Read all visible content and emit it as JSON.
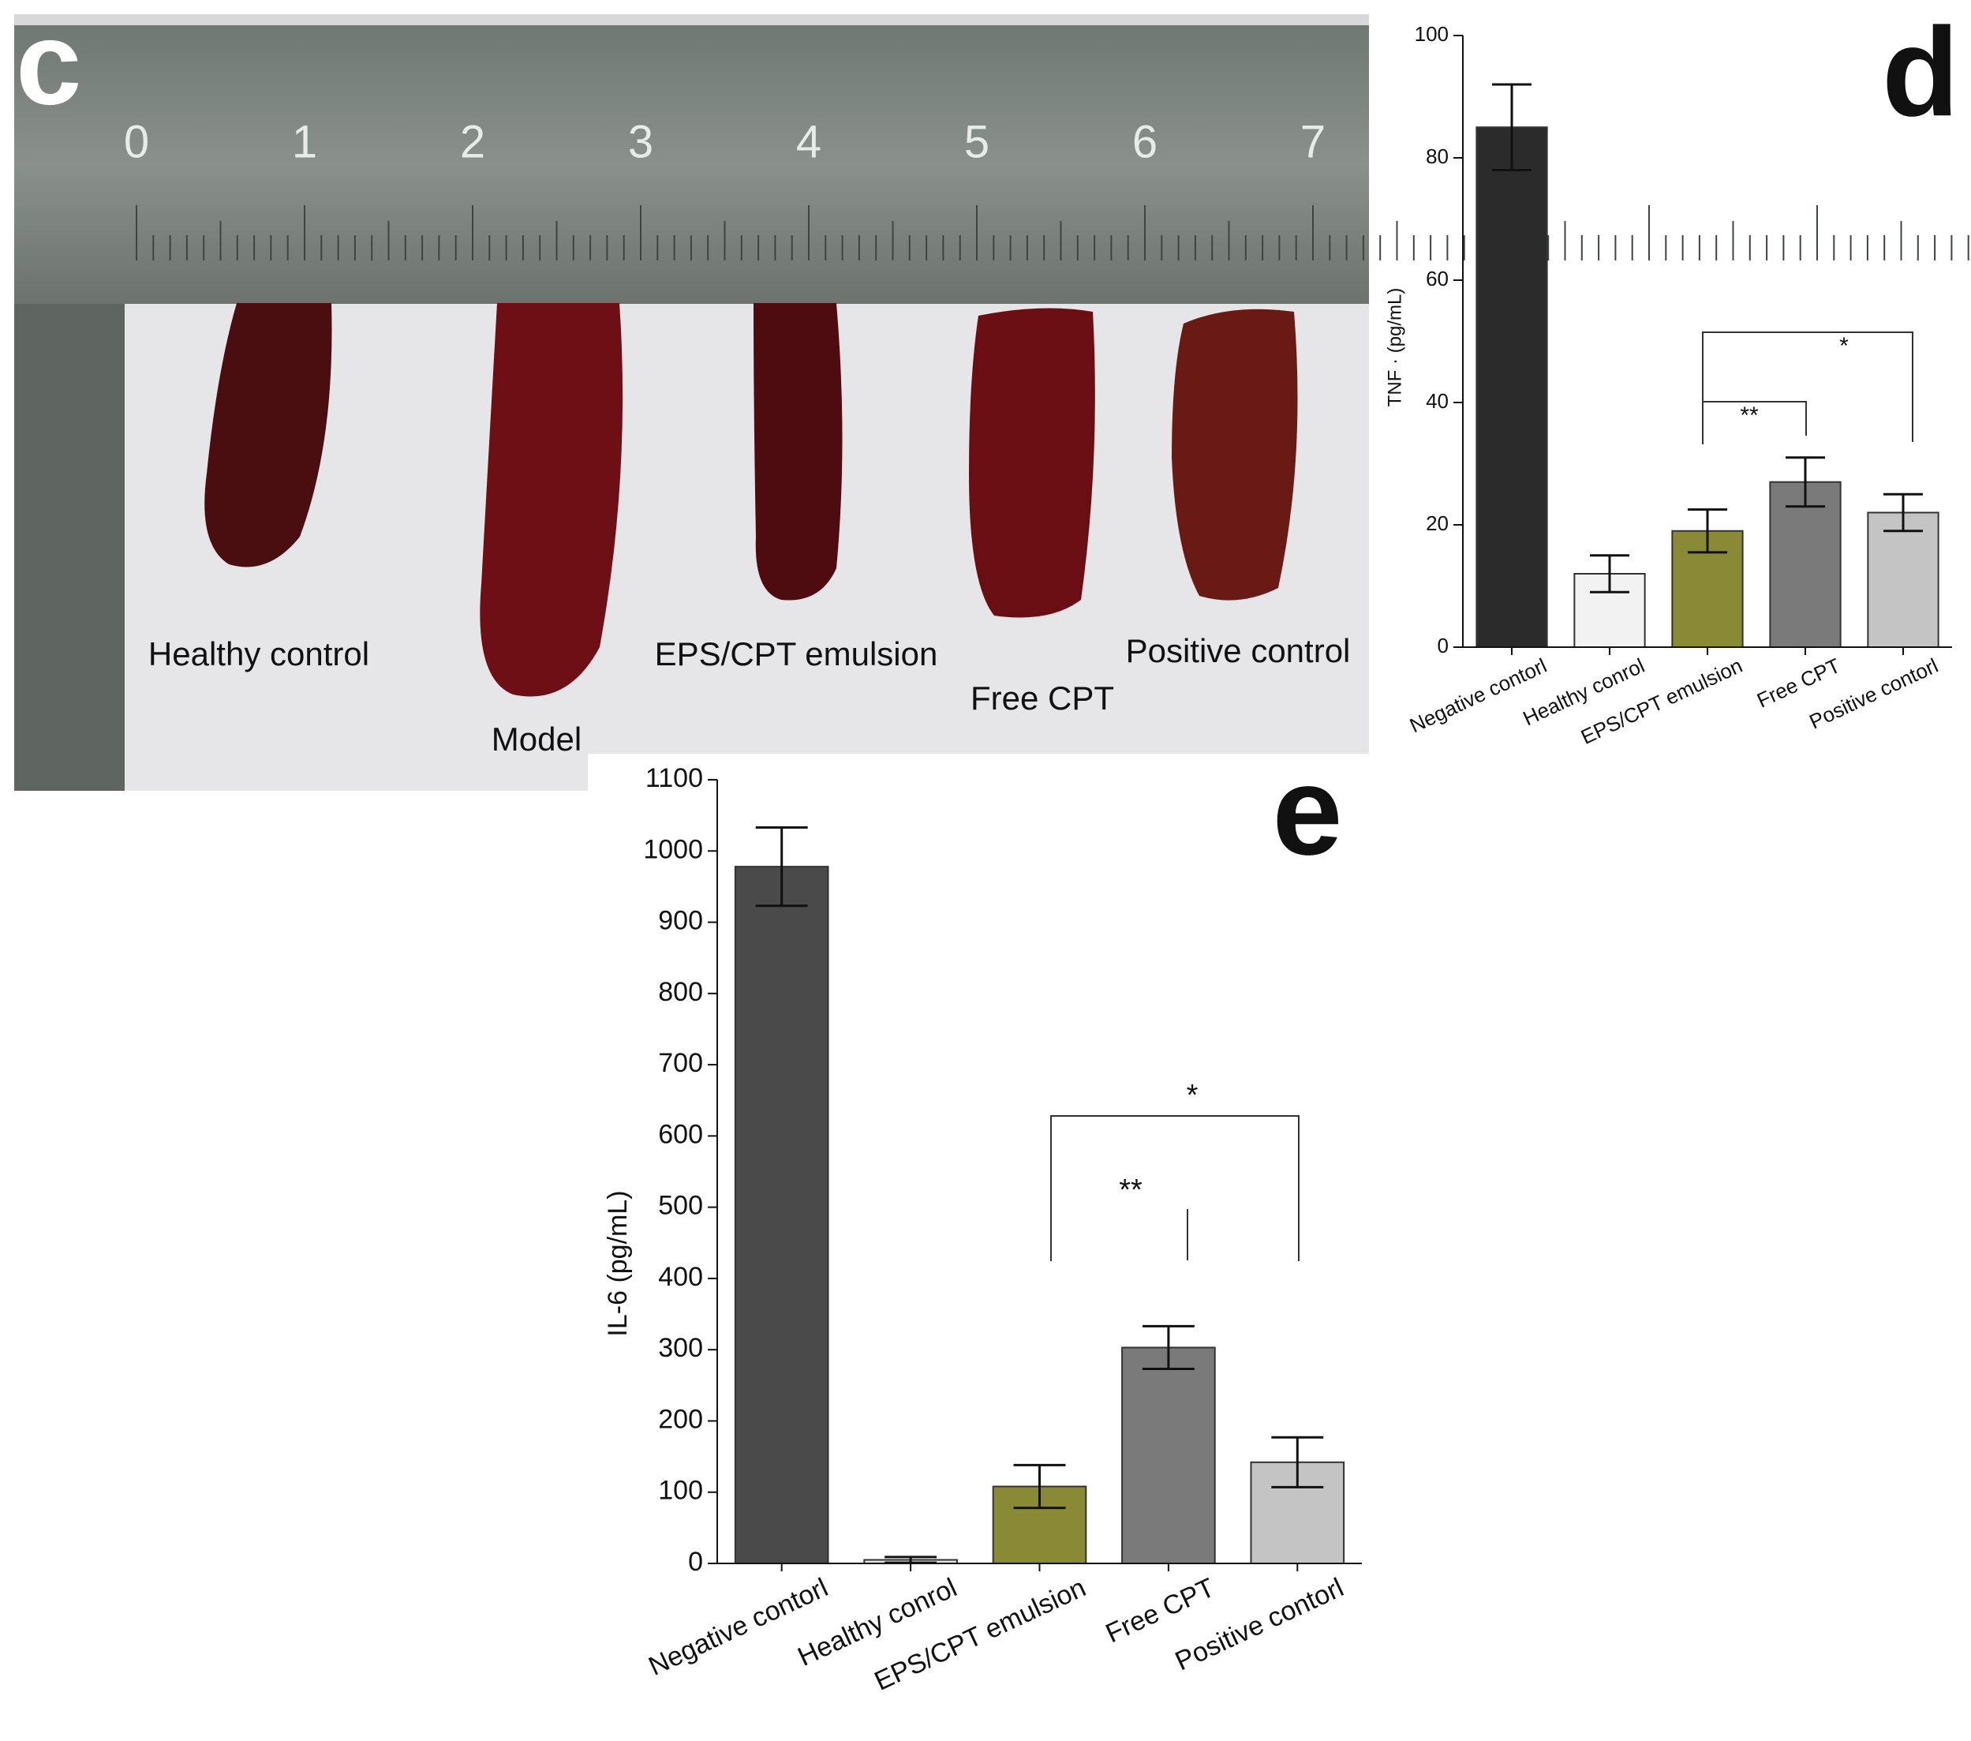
{
  "photo_panel": {
    "panel_label": "c",
    "ruler_numbers": [
      0,
      1,
      2,
      3,
      4,
      5,
      6,
      7
    ],
    "sample_labels": [
      "Healthy control",
      "Model",
      "EPS/CPT emulsion",
      "Free CPT",
      "Positive control"
    ]
  },
  "chart_data": [
    {
      "type": "bar",
      "panel_label": "d",
      "y_label": "TNF · (pg/mL)",
      "categories": [
        "Negative contorl",
        "Healthy conrol",
        "EPS/CPT emulsion",
        "Free CPT",
        "Positive contorl"
      ],
      "values": [
        85,
        12,
        19,
        27,
        22
      ],
      "errors": [
        7,
        3,
        3.5,
        4,
        3
      ],
      "colors": [
        "#2b2b2b",
        "#f2f2f2",
        "#8a8a36",
        "#7a7a7a",
        "#c4c4c4"
      ],
      "ylim": [
        0,
        100
      ],
      "yticks": [
        0,
        20,
        40,
        60,
        80,
        100
      ],
      "annotations": [
        "**",
        "*"
      ]
    },
    {
      "type": "bar",
      "panel_label": "e",
      "y_label": "IL-6 (pg/mL)",
      "categories": [
        "Negative contorl",
        "Healthy conrol",
        "EPS/CPT emulsion",
        "Free CPT",
        "Positive contorl"
      ],
      "values": [
        978,
        5,
        108,
        303,
        142
      ],
      "errors": [
        55,
        4,
        30,
        30,
        35
      ],
      "colors": [
        "#4a4a4a",
        "#e0e0e0",
        "#8a8a36",
        "#7a7a7a",
        "#c4c4c4"
      ],
      "ylim": [
        0,
        1100
      ],
      "yticks": [
        0,
        100,
        200,
        300,
        400,
        500,
        600,
        700,
        800,
        900,
        1000,
        1100
      ],
      "annotations": [
        "**",
        "*"
      ]
    }
  ]
}
